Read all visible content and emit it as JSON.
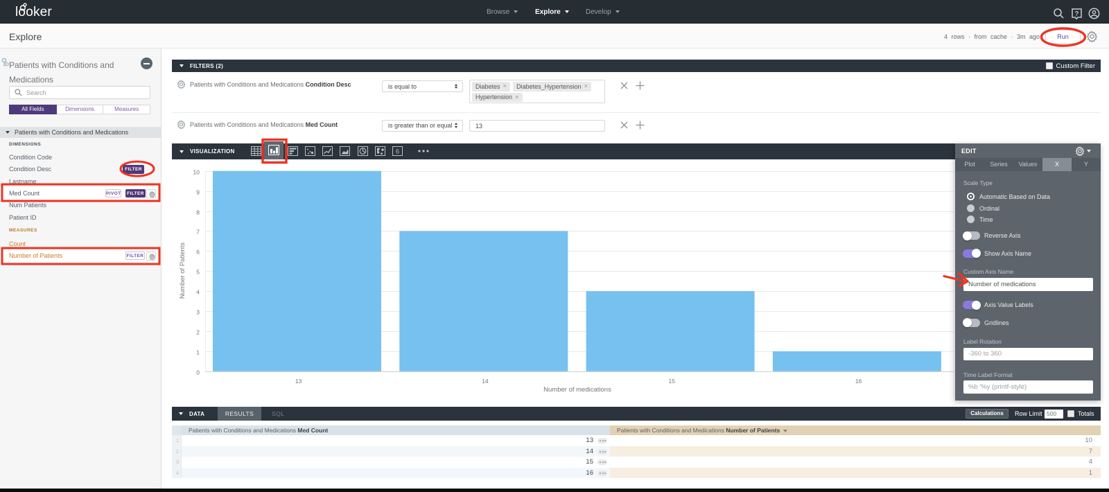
{
  "nav": {
    "logo": "looker",
    "items": [
      {
        "label": "Browse"
      },
      {
        "label": "Explore"
      },
      {
        "label": "Develop"
      }
    ],
    "icons": [
      "search",
      "help",
      "account"
    ]
  },
  "header": {
    "title": "Explore",
    "status": "4 rows  ·  from cache  ·  3m ago",
    "run_label": "Run"
  },
  "sidebar": {
    "model_title": "Patients with Conditions and Medications",
    "search_placeholder": "Search",
    "tabs": [
      {
        "label": "All Fields",
        "active": true
      },
      {
        "label": "Dimensions",
        "active": false
      },
      {
        "label": "Measures",
        "active": false
      }
    ],
    "section_title": "Patients with Conditions and Medications",
    "groups": [
      {
        "label": "DIMENSIONS",
        "items": [
          {
            "label": "Condition Code"
          },
          {
            "label": "Condition Desc",
            "buttons": [
              {
                "label": "FILTER",
                "style": "solid"
              }
            ]
          },
          {
            "label": "Lastname"
          },
          {
            "label": "Med Count",
            "buttons": [
              {
                "label": "PIVOT",
                "style": "outline"
              },
              {
                "label": "FILTER",
                "style": "solid"
              }
            ],
            "gear": true
          },
          {
            "label": "Num Patients"
          },
          {
            "label": "Patient ID"
          }
        ]
      },
      {
        "label": "MEASURES",
        "items": [
          {
            "label": "Count"
          },
          {
            "label": "Number of Patients",
            "buttons": [
              {
                "label": "FILTER",
                "style": "outline"
              }
            ],
            "gear": true
          }
        ]
      }
    ]
  },
  "filters": {
    "title": "FILTERS (2)",
    "custom_filter_label": "Custom Filter",
    "rows": [
      {
        "field_prefix": "Patients with Conditions and Medications",
        "field_name": "Condition Desc",
        "operator": "is equal to",
        "chips": [
          "Diabetes",
          "Diabetes_Hypertension",
          "Hypertension"
        ]
      },
      {
        "field_prefix": "Patients with Conditions and Medications",
        "field_name": "Med Count",
        "operator": "is greater than or equal",
        "value": "13"
      }
    ]
  },
  "visualization": {
    "title": "VISUALIZATION",
    "icons": [
      "table-chart",
      "bar-chart",
      "column-chart",
      "scatter-chart",
      "line-chart",
      "area-chart",
      "pie-chart",
      "map-chart",
      "single-value",
      "more-viz"
    ],
    "selected_icon": "bar-chart"
  },
  "chart_data": {
    "type": "bar",
    "categories": [
      "13",
      "14",
      "15",
      "16"
    ],
    "values": [
      10,
      7,
      4,
      1
    ],
    "title": "",
    "xlabel": "Number of medications",
    "ylabel": "Number of Patients",
    "ylim": [
      0,
      10
    ],
    "yticks": [
      0,
      1,
      2,
      3,
      4,
      5,
      6,
      7,
      8,
      9,
      10
    ],
    "bar_color": "#76c1f0",
    "gridlines": true,
    "legend": "none"
  },
  "edit_panel": {
    "title": "EDIT",
    "tabs": [
      {
        "label": "Plot",
        "active": false
      },
      {
        "label": "Series",
        "active": false
      },
      {
        "label": "Values",
        "active": false
      },
      {
        "label": "X",
        "active": true
      },
      {
        "label": "Y",
        "active": false
      }
    ],
    "scale_type_label": "Scale Type",
    "scale_options": [
      {
        "label": "Automatic Based on Data",
        "selected": true
      },
      {
        "label": "Ordinal",
        "selected": false
      },
      {
        "label": "Time",
        "selected": false
      }
    ],
    "reverse_axis": {
      "label": "Reverse Axis",
      "on": false
    },
    "show_axis_name": {
      "label": "Show Axis Name",
      "on": true
    },
    "custom_axis_name_label": "Custom Axis Name",
    "custom_axis_name_value": "Number of medications",
    "axis_value_labels": {
      "label": "Axis Value Labels",
      "on": true
    },
    "gridlines_toggle": {
      "label": "Gridlines",
      "on": false
    },
    "label_rotation_label": "Label Rotation",
    "label_rotation_placeholder": "-360 to 360",
    "time_label_format_label": "Time Label Format",
    "time_label_format_placeholder": "%b '%y (printf-style)"
  },
  "data_section": {
    "title": "DATA",
    "tabs": [
      {
        "label": "RESULTS",
        "active": true
      },
      {
        "label": "SQL",
        "active": false
      }
    ],
    "calculations_label": "Calculations",
    "row_limit_label": "Row Limit",
    "row_limit_value": "500",
    "totals_label": "Totals",
    "table": {
      "columns": [
        {
          "prefix": "Patients with Conditions and Medications",
          "name": "Med Count"
        },
        {
          "prefix": "Patients with Conditions and Medications",
          "name": "Number of Patients",
          "sorted": true
        }
      ],
      "rows": [
        {
          "index": "1",
          "med_count": "13",
          "number_of_patients": "10"
        },
        {
          "index": "2",
          "med_count": "14",
          "number_of_patients": "7"
        },
        {
          "index": "3",
          "med_count": "15",
          "number_of_patients": "4"
        },
        {
          "index": "4",
          "med_count": "16",
          "number_of_patients": "1"
        }
      ]
    }
  },
  "annotations": {
    "color": "#ee3322",
    "shapes": [
      "ellipse-around-run-button",
      "ellipse-around-condition-desc-filter-button",
      "box-around-med-count-row",
      "box-around-number-of-patients-row",
      "box-around-bar-chart-icon",
      "arrow-to-custom-axis-name-input"
    ]
  }
}
